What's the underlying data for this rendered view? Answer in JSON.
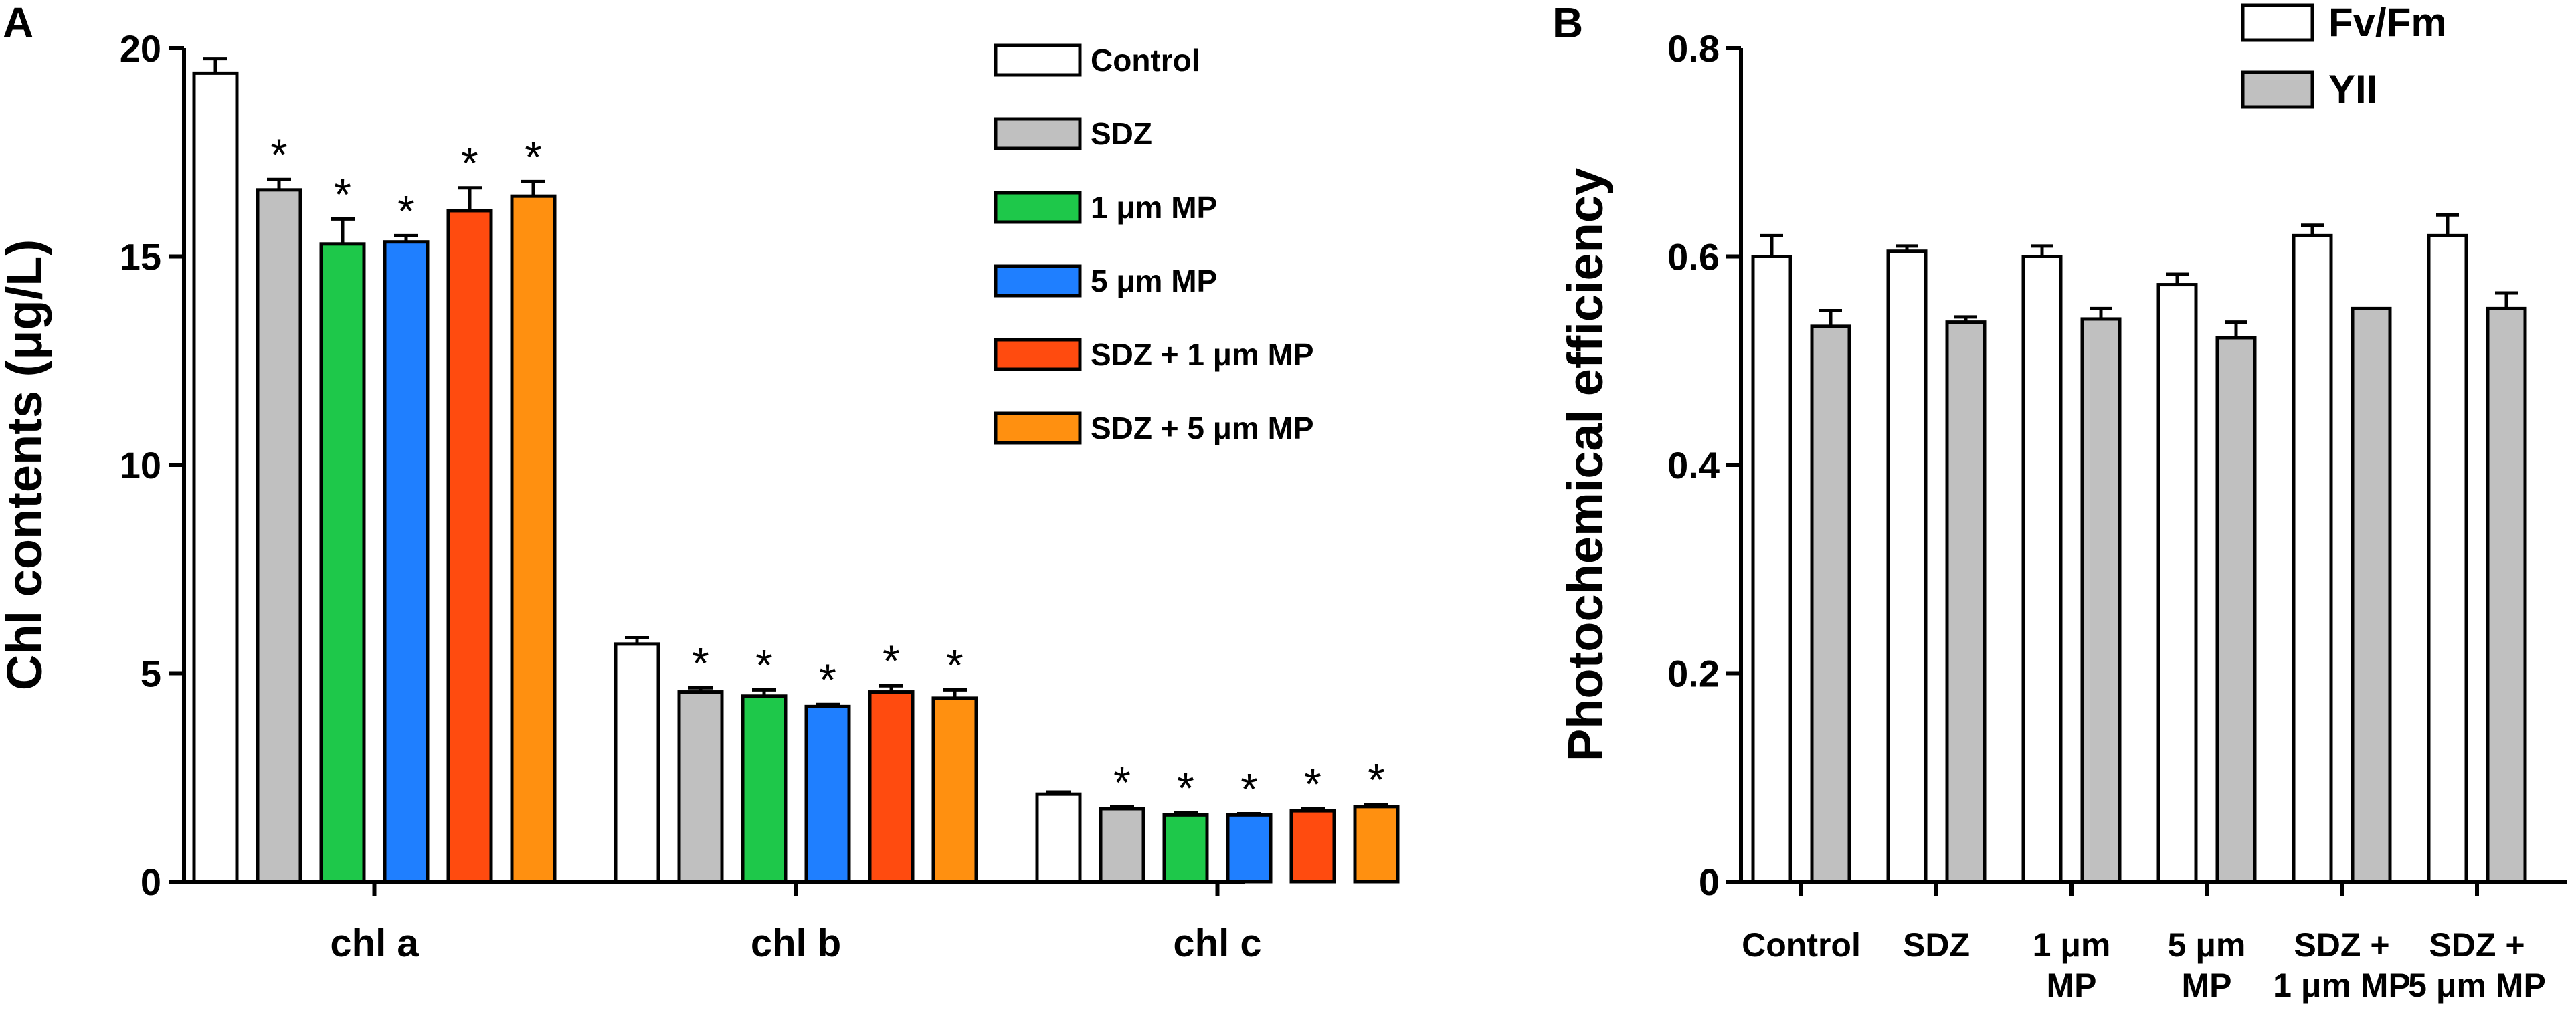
{
  "chart_data": [
    {
      "panel": "A",
      "type": "bar",
      "ylabel": "Chl contents (μg/L)",
      "xlabel": "",
      "ylim": [
        0,
        20
      ],
      "yticks": [
        0,
        5,
        10,
        15,
        20
      ],
      "categories": [
        "chl a",
        "chl b",
        "chl c"
      ],
      "series": [
        {
          "name": "Control",
          "color": "#ffffff",
          "values": [
            19.4,
            5.7,
            2.1
          ],
          "errors": [
            0.35,
            0.15,
            0.05
          ],
          "significant": [
            false,
            false,
            false
          ]
        },
        {
          "name": "SDZ",
          "color": "#c0c0c0",
          "values": [
            16.6,
            4.55,
            1.75
          ],
          "errors": [
            0.25,
            0.1,
            0.04
          ],
          "significant": [
            true,
            true,
            true
          ]
        },
        {
          "name": "1 μm MP",
          "color": "#1ec84a",
          "values": [
            15.3,
            4.45,
            1.6
          ],
          "errors": [
            0.6,
            0.15,
            0.05
          ],
          "significant": [
            true,
            true,
            true
          ]
        },
        {
          "name": "5 μm MP",
          "color": "#1f7fff",
          "values": [
            15.35,
            4.2,
            1.6
          ],
          "errors": [
            0.15,
            0.05,
            0.03
          ],
          "significant": [
            true,
            true,
            true
          ]
        },
        {
          "name": "SDZ + 1 μm MP",
          "color": "#ff4b0f",
          "values": [
            16.1,
            4.55,
            1.7
          ],
          "errors": [
            0.55,
            0.15,
            0.05
          ],
          "significant": [
            true,
            true,
            true
          ]
        },
        {
          "name": "SDZ + 5 μm MP",
          "color": "#ff9010",
          "values": [
            16.45,
            4.4,
            1.8
          ],
          "errors": [
            0.35,
            0.2,
            0.05
          ],
          "significant": [
            true,
            true,
            true
          ]
        }
      ],
      "annotation_symbol": "*",
      "legend_position": "top-right"
    },
    {
      "panel": "B",
      "type": "bar",
      "ylabel": "Photochemical efficiency",
      "xlabel": "",
      "ylim": [
        0,
        0.8
      ],
      "yticks": [
        "0",
        "0.2",
        "0.4",
        "0.6",
        "0.8"
      ],
      "categories": [
        [
          "Control"
        ],
        [
          "SDZ"
        ],
        [
          "1 μm",
          "MP"
        ],
        [
          "5 μm",
          "MP"
        ],
        [
          "SDZ +",
          "1 μm MP"
        ],
        [
          "SDZ +",
          "5 μm MP"
        ]
      ],
      "series": [
        {
          "name": "Fv/Fm",
          "color": "#ffffff",
          "values": [
            0.6,
            0.605,
            0.6,
            0.573,
            0.62,
            0.62
          ],
          "errors": [
            0.02,
            0.005,
            0.01,
            0.01,
            0.01,
            0.02
          ]
        },
        {
          "name": "YII",
          "color": "#c0c0c0",
          "values": [
            0.533,
            0.537,
            0.54,
            0.522,
            0.55,
            0.55
          ],
          "errors": [
            0.015,
            0.005,
            0.01,
            0.015,
            0.0,
            0.015
          ]
        }
      ],
      "legend_position": "top-right"
    }
  ]
}
